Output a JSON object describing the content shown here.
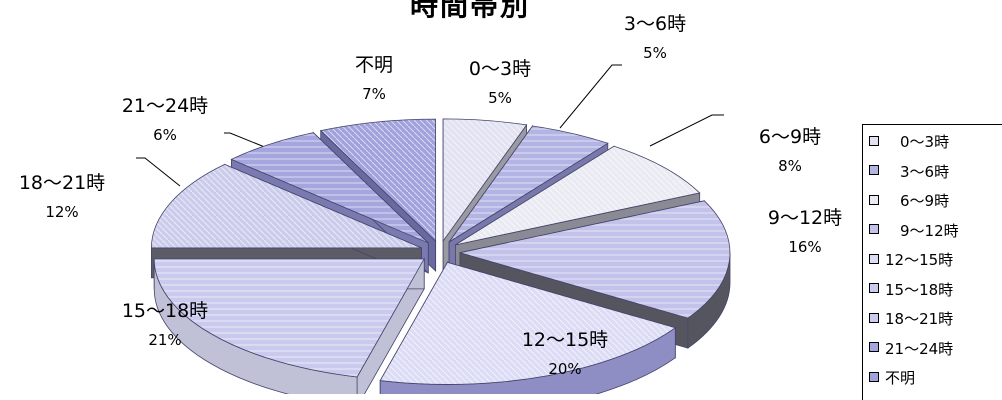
{
  "chart_data": {
    "type": "pie",
    "title": "時間帯別",
    "categories": [
      "0～3時",
      "3～6時",
      "6～9時",
      "9～12時",
      "12～15時",
      "15～18時",
      "18～21時",
      "21～24時",
      "不明"
    ],
    "values": [
      5,
      5,
      8,
      16,
      20,
      21,
      12,
      6,
      7
    ],
    "value_labels": [
      "5%",
      "5%",
      "8%",
      "16%",
      "20%",
      "21%",
      "12%",
      "6%",
      "7%"
    ],
    "legend_labels": [
      "　0～3時",
      "　3～6時",
      "　6～9時",
      "　9～12時",
      "12～15時",
      "15～18時",
      "18～21時",
      "21～24時",
      "不明"
    ],
    "legend_position": "right",
    "exploded": true,
    "style": "3d",
    "colors": {
      "top": [
        "#e2e2f2",
        "#b3b3e4",
        "#eaeaf2",
        "#c2c2ea",
        "#dcdcf6",
        "#cacaee",
        "#cbcbec",
        "#a6a6de",
        "#a1a1dc"
      ],
      "side": [
        "#9a9aa2",
        "#7878aa",
        "#8a8a94",
        "#555560",
        "#8e8ec4",
        "#c0c0d6",
        "#5c5c66",
        "#7a7ab0",
        "#6a6aa0"
      ]
    }
  }
}
